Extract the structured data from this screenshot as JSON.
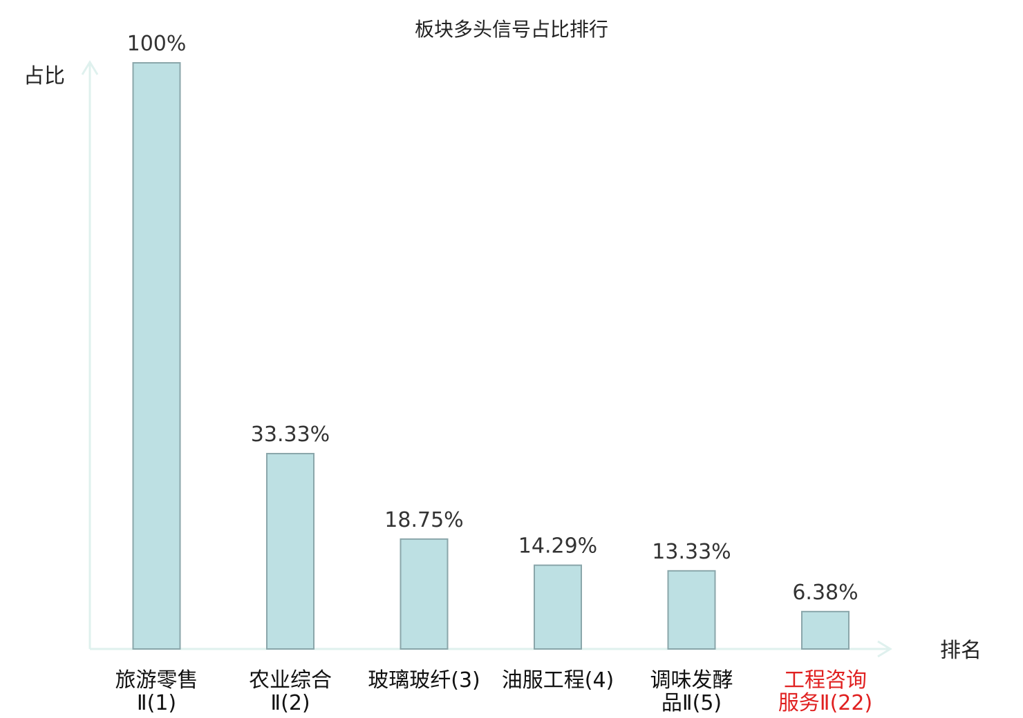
{
  "chart_data": {
    "type": "bar",
    "title": "板块多头信号占比排行",
    "ylabel": "占比",
    "xlabel": "排名",
    "ylim": [
      0,
      100
    ],
    "grid": false,
    "categories": [
      {
        "lines": [
          "旅游零售",
          "Ⅱ(1)"
        ],
        "highlight": false
      },
      {
        "lines": [
          "农业综合",
          "Ⅱ(2)"
        ],
        "highlight": false
      },
      {
        "lines": [
          "玻璃玻纤(3)"
        ],
        "highlight": false
      },
      {
        "lines": [
          "油服工程(4)"
        ],
        "highlight": false
      },
      {
        "lines": [
          "调味发酵",
          "品Ⅱ(5)"
        ],
        "highlight": false
      },
      {
        "lines": [
          "工程咨询",
          "服务Ⅱ(22)"
        ],
        "highlight": true
      }
    ],
    "values": [
      100,
      33.33,
      18.75,
      14.29,
      13.33,
      6.38
    ],
    "value_labels": [
      "100%",
      "33.33%",
      "18.75%",
      "14.29%",
      "13.33%",
      "6.38%"
    ],
    "colors": {
      "bar_fill": "#bde0e3",
      "bar_stroke": "#8aa6aa",
      "axis": "#dff1ee",
      "label": "#111111",
      "highlight": "#e02020"
    }
  }
}
